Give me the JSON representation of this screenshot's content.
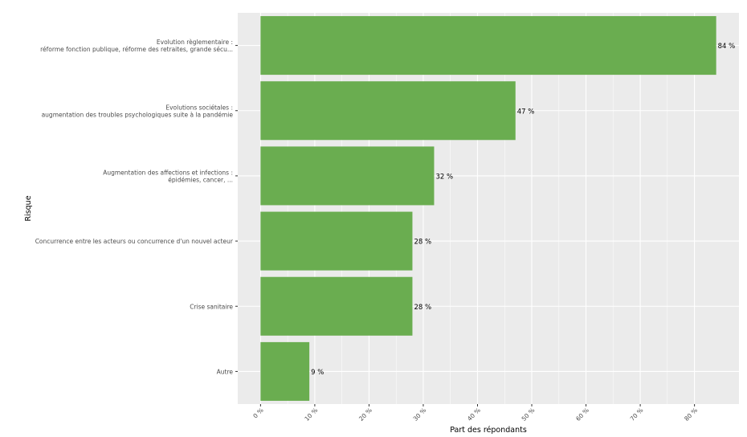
{
  "chart_data": {
    "type": "bar",
    "orientation": "horizontal",
    "categories": [
      [
        "Evolution règlementaire :",
        "réforme fonction publique, réforme des retraites, grande sécu..."
      ],
      [
        "Evolutions sociétales :",
        "augmentation des troubles psychologiques suite à la pandémie"
      ],
      [
        "Augmentation des affections et infections :",
        "épidémies, cancer, ..."
      ],
      [
        "Concurrence entre les acteurs ou concurrence d'un nouvel acteur"
      ],
      [
        "Crise sanitaire"
      ],
      [
        "Autre"
      ]
    ],
    "values": [
      84,
      47,
      32,
      28,
      28,
      9
    ],
    "data_labels": [
      "84 %",
      "47 %",
      "32 %",
      "28 %",
      "28 %",
      "9 %"
    ],
    "xlabel": "Part des répondants",
    "ylabel": "Risque",
    "xlim": [
      -4.2,
      88.2
    ],
    "xticks": [
      0,
      10,
      20,
      30,
      40,
      50,
      60,
      70,
      80
    ],
    "xtick_labels": [
      "0 %",
      "10 %",
      "20 %",
      "30 %",
      "40 %",
      "50 %",
      "60 %",
      "70 %",
      "80 %"
    ],
    "grid": true,
    "bar_color": "#6aad50",
    "panel_color": "#ebebeb"
  }
}
